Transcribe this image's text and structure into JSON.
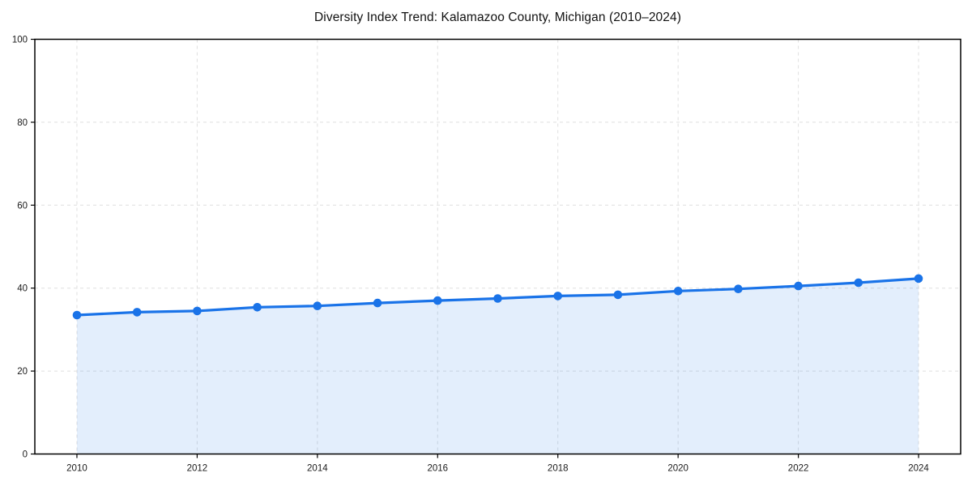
{
  "chart_data": {
    "type": "line",
    "title": "Diversity Index Trend: Kalamazoo County, Michigan (2010–2024)",
    "series_name": "Diversity Index",
    "x": [
      2010,
      2011,
      2012,
      2013,
      2014,
      2015,
      2016,
      2017,
      2018,
      2019,
      2020,
      2021,
      2022,
      2023,
      2024
    ],
    "values": [
      33.5,
      34.2,
      34.5,
      35.4,
      35.7,
      36.4,
      37.0,
      37.5,
      38.1,
      38.4,
      39.3,
      39.8,
      40.5,
      41.3,
      42.3
    ],
    "xlabel": "",
    "ylabel": "",
    "xlim": [
      2009.3,
      2024.7
    ],
    "ylim": [
      0,
      100
    ],
    "xticks": [
      2010,
      2012,
      2014,
      2016,
      2018,
      2020,
      2022,
      2024
    ],
    "yticks": [
      0,
      20,
      40,
      60,
      80,
      100
    ],
    "grid": true,
    "grid_style": "dashed",
    "legend": false,
    "marker": "circle",
    "area_fill": true,
    "line_color": "#1a73e8",
    "fill_opacity": 0.12,
    "gridline_color": "#dfdfdf",
    "spine_color": "#000000",
    "background_color": "#ffffff"
  }
}
